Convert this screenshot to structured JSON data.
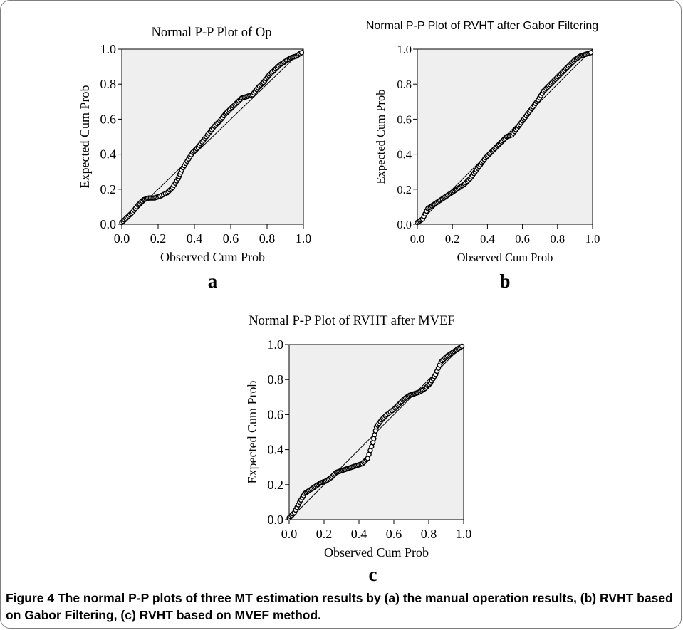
{
  "figure": {
    "caption_label": "Figure 4",
    "caption_text": " The normal P-P plots of three MT estimation results by (a) the manual operation results, (b) RVHT based on Gabor Filtering, (c) RVHT based on MVEF method."
  },
  "chart_data": [
    {
      "type": "scatter",
      "title": "Normal P-P Plot of Op",
      "xlabel": "Observed Cum Prob",
      "ylabel": "Expected Cum Prob",
      "panel_label": "a",
      "xlim": [
        0,
        1
      ],
      "ylim": [
        0,
        1
      ],
      "xticks": [
        "0.0",
        "0.2",
        "0.4",
        "0.6",
        "0.8",
        "1.0"
      ],
      "yticks": [
        "0.0",
        "0.2",
        "0.4",
        "0.6",
        "0.8",
        "1.0"
      ],
      "reference_line": [
        [
          0,
          0
        ],
        [
          1,
          1
        ]
      ],
      "background": "#efefef",
      "points": [
        [
          0.0,
          0.01
        ],
        [
          0.03,
          0.04
        ],
        [
          0.06,
          0.07
        ],
        [
          0.09,
          0.11
        ],
        [
          0.12,
          0.14
        ],
        [
          0.15,
          0.15
        ],
        [
          0.18,
          0.15
        ],
        [
          0.21,
          0.16
        ],
        [
          0.25,
          0.18
        ],
        [
          0.28,
          0.21
        ],
        [
          0.31,
          0.26
        ],
        [
          0.33,
          0.31
        ],
        [
          0.36,
          0.36
        ],
        [
          0.39,
          0.41
        ],
        [
          0.42,
          0.44
        ],
        [
          0.45,
          0.48
        ],
        [
          0.48,
          0.52
        ],
        [
          0.51,
          0.56
        ],
        [
          0.54,
          0.59
        ],
        [
          0.57,
          0.63
        ],
        [
          0.6,
          0.66
        ],
        [
          0.63,
          0.69
        ],
        [
          0.66,
          0.72
        ],
        [
          0.69,
          0.73
        ],
        [
          0.72,
          0.74
        ],
        [
          0.75,
          0.78
        ],
        [
          0.78,
          0.81
        ],
        [
          0.81,
          0.85
        ],
        [
          0.84,
          0.88
        ],
        [
          0.87,
          0.91
        ],
        [
          0.9,
          0.93
        ],
        [
          0.93,
          0.95
        ],
        [
          0.96,
          0.96
        ],
        [
          0.99,
          0.98
        ]
      ]
    },
    {
      "type": "scatter",
      "title": "Normal P-P Plot of  RVHT after Gabor Filtering",
      "xlabel": "Observed Cum Prob",
      "ylabel": "Expected Cum Prob",
      "panel_label": "b",
      "xlim": [
        0,
        1
      ],
      "ylim": [
        0,
        1
      ],
      "xticks": [
        "0.0",
        "0.2",
        "0.4",
        "0.6",
        "0.8",
        "1.0"
      ],
      "yticks": [
        "0.0",
        "0.2",
        "0.4",
        "0.6",
        "0.8",
        "1.0"
      ],
      "reference_line": [
        [
          0,
          0
        ],
        [
          1,
          1
        ]
      ],
      "background": "#efefef",
      "points": [
        [
          0.0,
          0.01
        ],
        [
          0.03,
          0.03
        ],
        [
          0.06,
          0.09
        ],
        [
          0.09,
          0.11
        ],
        [
          0.12,
          0.13
        ],
        [
          0.15,
          0.15
        ],
        [
          0.18,
          0.17
        ],
        [
          0.21,
          0.19
        ],
        [
          0.24,
          0.21
        ],
        [
          0.27,
          0.23
        ],
        [
          0.3,
          0.26
        ],
        [
          0.33,
          0.3
        ],
        [
          0.36,
          0.34
        ],
        [
          0.39,
          0.38
        ],
        [
          0.42,
          0.41
        ],
        [
          0.45,
          0.44
        ],
        [
          0.48,
          0.47
        ],
        [
          0.51,
          0.5
        ],
        [
          0.54,
          0.51
        ],
        [
          0.57,
          0.55
        ],
        [
          0.6,
          0.59
        ],
        [
          0.63,
          0.63
        ],
        [
          0.66,
          0.67
        ],
        [
          0.69,
          0.71
        ],
        [
          0.72,
          0.76
        ],
        [
          0.75,
          0.79
        ],
        [
          0.78,
          0.82
        ],
        [
          0.81,
          0.85
        ],
        [
          0.84,
          0.88
        ],
        [
          0.87,
          0.91
        ],
        [
          0.9,
          0.94
        ],
        [
          0.93,
          0.96
        ],
        [
          0.96,
          0.97
        ],
        [
          0.99,
          0.98
        ]
      ]
    },
    {
      "type": "scatter",
      "title": "Normal P-P Plot of RVHT after MVEF",
      "xlabel": "Observed Cum Prob",
      "ylabel": "Expected Cum Prob",
      "panel_label": "c",
      "xlim": [
        0,
        1
      ],
      "ylim": [
        0,
        1
      ],
      "xticks": [
        "0.0",
        "0.2",
        "0.4",
        "0.6",
        "0.8",
        "1.0"
      ],
      "yticks": [
        "0.0",
        "0.2",
        "0.4",
        "0.6",
        "0.8",
        "1.0"
      ],
      "reference_line": [
        [
          0,
          0
        ],
        [
          1,
          1
        ]
      ],
      "background": "#efefef",
      "points": [
        [
          0.0,
          0.01
        ],
        [
          0.03,
          0.04
        ],
        [
          0.06,
          0.1
        ],
        [
          0.09,
          0.15
        ],
        [
          0.12,
          0.17
        ],
        [
          0.15,
          0.19
        ],
        [
          0.18,
          0.21
        ],
        [
          0.21,
          0.22
        ],
        [
          0.24,
          0.24
        ],
        [
          0.27,
          0.27
        ],
        [
          0.3,
          0.28
        ],
        [
          0.33,
          0.29
        ],
        [
          0.36,
          0.3
        ],
        [
          0.39,
          0.31
        ],
        [
          0.42,
          0.32
        ],
        [
          0.45,
          0.35
        ],
        [
          0.48,
          0.44
        ],
        [
          0.5,
          0.53
        ],
        [
          0.53,
          0.57
        ],
        [
          0.56,
          0.6
        ],
        [
          0.6,
          0.63
        ],
        [
          0.63,
          0.66
        ],
        [
          0.66,
          0.69
        ],
        [
          0.69,
          0.71
        ],
        [
          0.72,
          0.72
        ],
        [
          0.75,
          0.73
        ],
        [
          0.78,
          0.75
        ],
        [
          0.81,
          0.78
        ],
        [
          0.84,
          0.83
        ],
        [
          0.87,
          0.9
        ],
        [
          0.9,
          0.93
        ],
        [
          0.93,
          0.95
        ],
        [
          0.96,
          0.97
        ],
        [
          0.99,
          0.99
        ]
      ]
    }
  ]
}
